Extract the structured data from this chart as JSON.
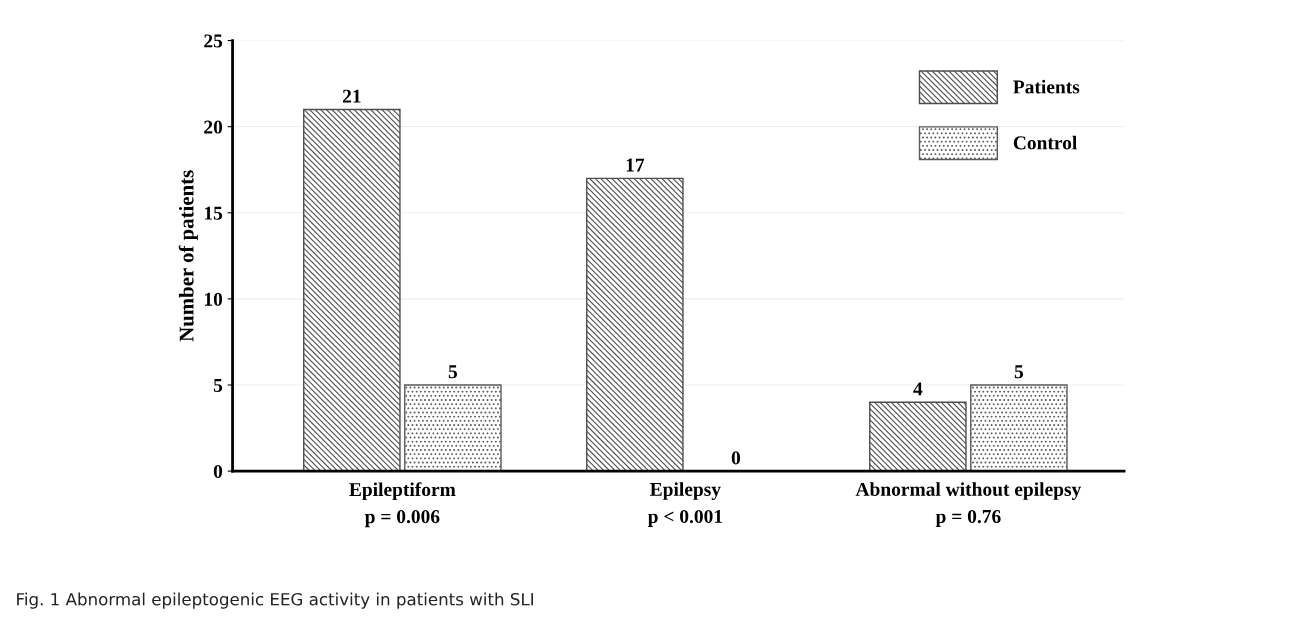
{
  "chart_data": {
    "type": "bar",
    "ylabel": "Number of patients",
    "categories": [
      "Epileptiform\np = 0.006",
      "Epilepsy\np < 0.001",
      "Abnormal without epilepsy\np = 0.76"
    ],
    "series": [
      {
        "name": "Patients",
        "color": "#4d4d4d",
        "values": [
          21,
          17,
          4
        ]
      },
      {
        "name": "Control",
        "color": "#5a5a5a",
        "values": [
          5,
          0,
          5
        ]
      }
    ],
    "ylim": [
      0,
      25
    ],
    "yticks": [
      0,
      5,
      10,
      15,
      20,
      25
    ],
    "grid": "y",
    "legend": "top right",
    "data_labels": true,
    "annotations": [
      "Fig. 1 Abnormal epileptogenic EEG activity in patients with SLI"
    ]
  }
}
